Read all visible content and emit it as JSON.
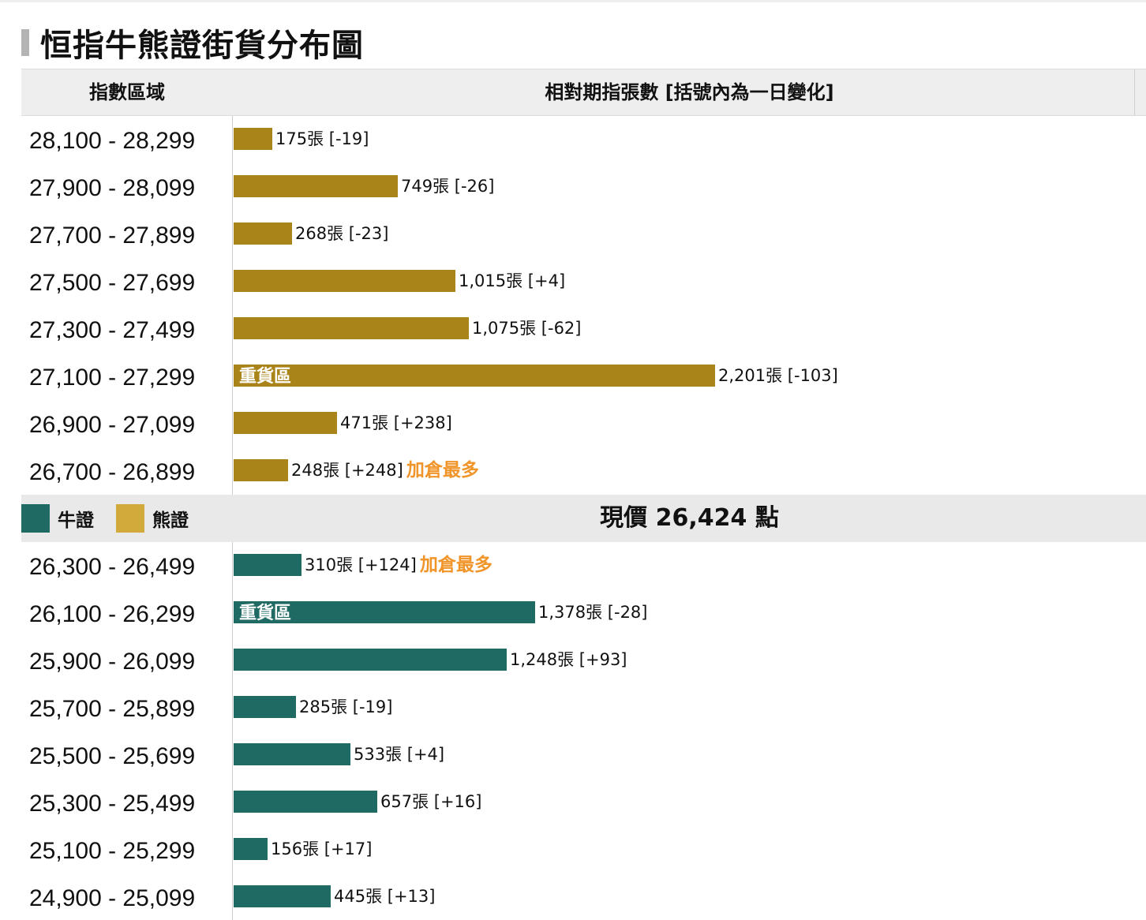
{
  "title": "恒指牛熊證街貨分布圖",
  "header": {
    "range_col": "指數區域",
    "count_col": "相對期指張數 [括號內為一日變化]"
  },
  "legend": {
    "bull_label": "牛證",
    "bear_label": "熊證"
  },
  "current_price_label": "現價 26,424 點",
  "colors": {
    "bear": "#a98419",
    "bull": "#1f6b64",
    "tag": "#f0952a",
    "bear_legend": "#d2aa3c"
  },
  "chart_data": {
    "type": "bar",
    "orientation": "horizontal",
    "current_price": 26424,
    "series": [
      {
        "name": "熊證",
        "rows": [
          {
            "range": "28,100 - 28,299",
            "value": 175,
            "label": "175張 [-19]",
            "tag": "",
            "inbar": ""
          },
          {
            "range": "27,900 - 28,099",
            "value": 749,
            "label": "749張 [-26]",
            "tag": "",
            "inbar": ""
          },
          {
            "range": "27,700 - 27,899",
            "value": 268,
            "label": "268張 [-23]",
            "tag": "",
            "inbar": ""
          },
          {
            "range": "27,500 - 27,699",
            "value": 1015,
            "label": "1,015張 [+4]",
            "tag": "",
            "inbar": ""
          },
          {
            "range": "27,300 - 27,499",
            "value": 1075,
            "label": "1,075張 [-62]",
            "tag": "",
            "inbar": ""
          },
          {
            "range": "27,100 - 27,299",
            "value": 2201,
            "label": "2,201張 [-103]",
            "tag": "",
            "inbar": "重貨區"
          },
          {
            "range": "26,900 - 27,099",
            "value": 471,
            "label": "471張 [+238]",
            "tag": "",
            "inbar": ""
          },
          {
            "range": "26,700 - 26,899",
            "value": 248,
            "label": "248張 [+248]",
            "tag": "加倉最多",
            "inbar": ""
          }
        ]
      },
      {
        "name": "牛證",
        "rows": [
          {
            "range": "26,300 - 26,499",
            "value": 310,
            "label": "310張 [+124]",
            "tag": "加倉最多",
            "inbar": ""
          },
          {
            "range": "26,100 - 26,299",
            "value": 1378,
            "label": "1,378張 [-28]",
            "tag": "",
            "inbar": "重貨區"
          },
          {
            "range": "25,900 - 26,099",
            "value": 1248,
            "label": "1,248張 [+93]",
            "tag": "",
            "inbar": ""
          },
          {
            "range": "25,700 - 25,899",
            "value": 285,
            "label": "285張 [-19]",
            "tag": "",
            "inbar": ""
          },
          {
            "range": "25,500 - 25,699",
            "value": 533,
            "label": "533張 [+4]",
            "tag": "",
            "inbar": ""
          },
          {
            "range": "25,300 - 25,499",
            "value": 657,
            "label": "657張 [+16]",
            "tag": "",
            "inbar": ""
          },
          {
            "range": "25,100 - 25,299",
            "value": 156,
            "label": "156張 [+17]",
            "tag": "",
            "inbar": ""
          },
          {
            "range": "24,900 - 25,099",
            "value": 445,
            "label": "445張 [+13]",
            "tag": "",
            "inbar": ""
          }
        ]
      }
    ]
  }
}
